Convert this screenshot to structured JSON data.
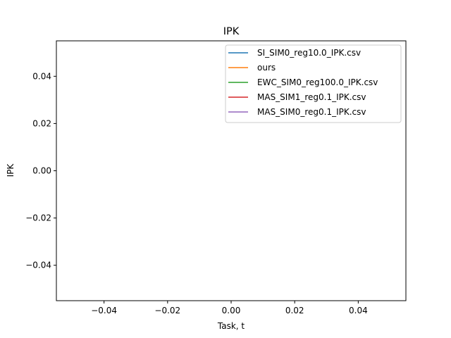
{
  "chart_data": {
    "type": "line",
    "title": "IPK",
    "xlabel": "Task, t",
    "ylabel": "IPK",
    "xlim": [
      -0.055,
      0.055
    ],
    "ylim": [
      -0.055,
      0.055
    ],
    "x_ticks": [
      -0.04,
      -0.02,
      0.0,
      0.02,
      0.04
    ],
    "x_tick_labels": [
      "−0.04",
      "−0.02",
      "0.00",
      "0.02",
      "0.04"
    ],
    "y_ticks": [
      -0.04,
      -0.02,
      0.0,
      0.02,
      0.04
    ],
    "y_tick_labels": [
      "−0.04",
      "−0.02",
      "0.00",
      "0.02",
      "0.04"
    ],
    "grid": false,
    "legend_position": "top-right",
    "series": [
      {
        "name": "SI_SIM0_reg10.0_IPK.csv",
        "color": "#1f77b4",
        "x": [],
        "y": []
      },
      {
        "name": "ours",
        "color": "#ff7f0e",
        "x": [],
        "y": []
      },
      {
        "name": "EWC_SIM0_reg100.0_IPK.csv",
        "color": "#2ca02c",
        "x": [],
        "y": []
      },
      {
        "name": "MAS_SIM1_reg0.1_IPK.csv",
        "color": "#d62728",
        "x": [],
        "y": []
      },
      {
        "name": "MAS_SIM0_reg0.1_IPK.csv",
        "color": "#9467bd",
        "x": [],
        "y": []
      }
    ]
  }
}
